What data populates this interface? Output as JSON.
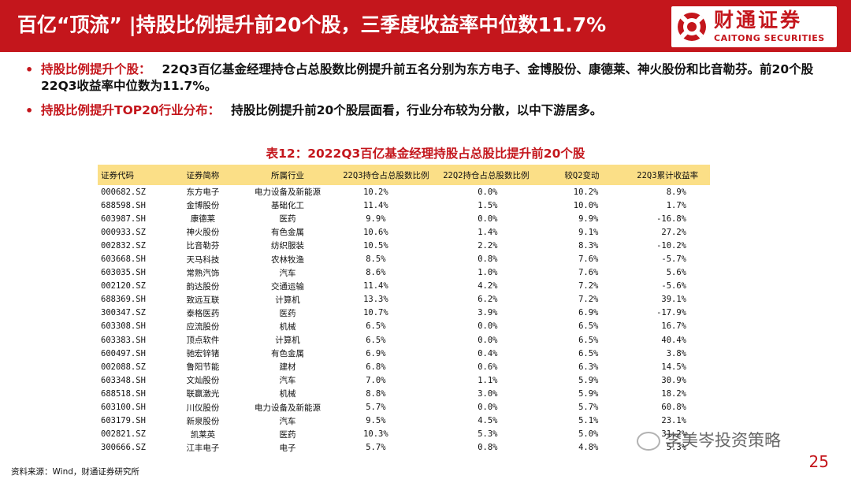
{
  "header": {
    "title": "百亿“顶流” |持股比例提升前20个股，三季度收益率中位数11.7%",
    "logo_cn": "财通证券",
    "logo_en": "CAITONG SECURITIES",
    "accent_color": "#c4161c"
  },
  "bullets": [
    {
      "lead": "持股比例提升个股：",
      "text": "22Q3百亿基金经理持仓占总股数比例提升前五名分别为东方电子、金博股份、康德莱、神火股份和比音勒芬。前20个股22Q3收益率中位数为11.7%。"
    },
    {
      "lead": "持股比例提升TOP20行业分布：",
      "text": "持股比例提升前20个股层面看，行业分布较为分散，以中下游居多。"
    }
  ],
  "table": {
    "title": "表12：2022Q3百亿基金经理持股占总股比提升前20个股",
    "header_bg": "#fbdf87",
    "columns": [
      "证券代码",
      "证券简称",
      "所属行业",
      "22Q3持仓占总股数比例",
      "22Q2持仓占总股数比例",
      "较Q2变动",
      "22Q3累计收益率"
    ],
    "rows": [
      [
        "000682.SZ",
        "东方电子",
        "电力设备及新能源",
        "10.2%",
        "0.0%",
        "10.2%",
        "8.9%"
      ],
      [
        "688598.SH",
        "金博股份",
        "基础化工",
        "11.4%",
        "1.5%",
        "10.0%",
        "1.7%"
      ],
      [
        "603987.SH",
        "康德莱",
        "医药",
        "9.9%",
        "0.0%",
        "9.9%",
        "-16.8%"
      ],
      [
        "000933.SZ",
        "神火股份",
        "有色金属",
        "10.6%",
        "1.4%",
        "9.1%",
        "27.2%"
      ],
      [
        "002832.SZ",
        "比音勒芬",
        "纺织服装",
        "10.5%",
        "2.2%",
        "8.3%",
        "-10.2%"
      ],
      [
        "603668.SH",
        "天马科技",
        "农林牧渔",
        "8.5%",
        "0.8%",
        "7.6%",
        "-5.7%"
      ],
      [
        "603035.SH",
        "常熟汽饰",
        "汽车",
        "8.6%",
        "1.0%",
        "7.6%",
        "5.6%"
      ],
      [
        "002120.SZ",
        "韵达股份",
        "交通运输",
        "11.4%",
        "4.2%",
        "7.2%",
        "-5.6%"
      ],
      [
        "688369.SH",
        "致远互联",
        "计算机",
        "13.3%",
        "6.2%",
        "7.2%",
        "39.1%"
      ],
      [
        "300347.SZ",
        "泰格医药",
        "医药",
        "10.7%",
        "3.9%",
        "6.9%",
        "-17.9%"
      ],
      [
        "603308.SH",
        "应流股份",
        "机械",
        "6.5%",
        "0.0%",
        "6.5%",
        "16.7%"
      ],
      [
        "603383.SH",
        "顶点软件",
        "计算机",
        "6.5%",
        "0.0%",
        "6.5%",
        "40.4%"
      ],
      [
        "600497.SH",
        "驰宏锌锗",
        "有色金属",
        "6.9%",
        "0.4%",
        "6.5%",
        "3.8%"
      ],
      [
        "002088.SZ",
        "鲁阳节能",
        "建材",
        "6.8%",
        "0.6%",
        "6.3%",
        "14.5%"
      ],
      [
        "603348.SH",
        "文灿股份",
        "汽车",
        "7.0%",
        "1.1%",
        "5.9%",
        "30.9%"
      ],
      [
        "688518.SH",
        "联赢激光",
        "机械",
        "8.8%",
        "3.0%",
        "5.9%",
        "18.2%"
      ],
      [
        "603100.SH",
        "川仪股份",
        "电力设备及新能源",
        "5.7%",
        "0.0%",
        "5.7%",
        "60.8%"
      ],
      [
        "603179.SH",
        "新泉股份",
        "汽车",
        "9.5%",
        "4.5%",
        "5.1%",
        "23.1%"
      ],
      [
        "002821.SZ",
        "凯莱英",
        "医药",
        "10.3%",
        "5.3%",
        "5.0%",
        "31.2%"
      ],
      [
        "300666.SZ",
        "江丰电子",
        "电子",
        "5.7%",
        "0.8%",
        "4.8%",
        "5.3%"
      ]
    ]
  },
  "footer": {
    "source": "资料来源：Wind，财通证券研究所",
    "page_number": "25",
    "watermark": "李美岑投资策略"
  }
}
